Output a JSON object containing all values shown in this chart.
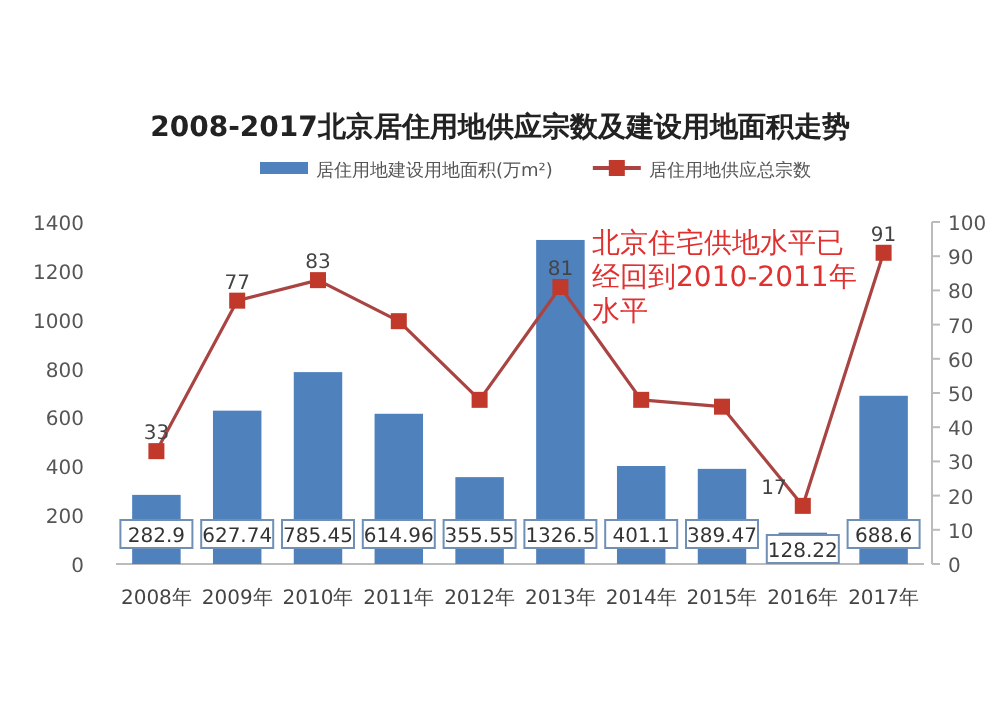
{
  "chart_data": {
    "type": "bar",
    "title": "2008-2017北京居住用地供应宗数及建设用地面积走势",
    "categories": [
      "2008年",
      "2009年",
      "2010年",
      "2011年",
      "2012年",
      "2013年",
      "2014年",
      "2015年",
      "2016年",
      "2017年"
    ],
    "series": [
      {
        "name": "居住用地建设用地面积(万m²)",
        "color": "#4f81bd",
        "values": [
          282.9,
          627.74,
          785.45,
          614.96,
          355.55,
          1326.5,
          401.1,
          389.47,
          128.22,
          688.6
        ],
        "value_labels": [
          "282.9",
          "627.74",
          "785.45",
          "614.96",
          "355.55",
          "1326.5",
          "401.1",
          "389.47",
          "128.22",
          "688.6"
        ]
      },
      {
        "name": "居住用地供应总宗数",
        "type": "line",
        "axis": "y2",
        "color": "#a94442",
        "values": [
          33,
          77,
          83,
          71,
          48,
          81,
          48,
          46,
          17,
          91
        ],
        "value_labels": [
          "33",
          "77",
          "83",
          null,
          null,
          "81",
          null,
          null,
          "17",
          "91"
        ]
      }
    ],
    "ylim": [
      0,
      1400
    ],
    "yticks": [
      0,
      200,
      400,
      600,
      800,
      1000,
      1200,
      1400
    ],
    "y2lim": [
      0,
      100
    ],
    "y2ticks": [
      0,
      10,
      20,
      30,
      40,
      50,
      60,
      70,
      80,
      90,
      100
    ],
    "marker": "square",
    "legend": "top",
    "grid": false,
    "annotations": [
      "北京住宅供地水平已经回到2010-2011年水平"
    ]
  }
}
